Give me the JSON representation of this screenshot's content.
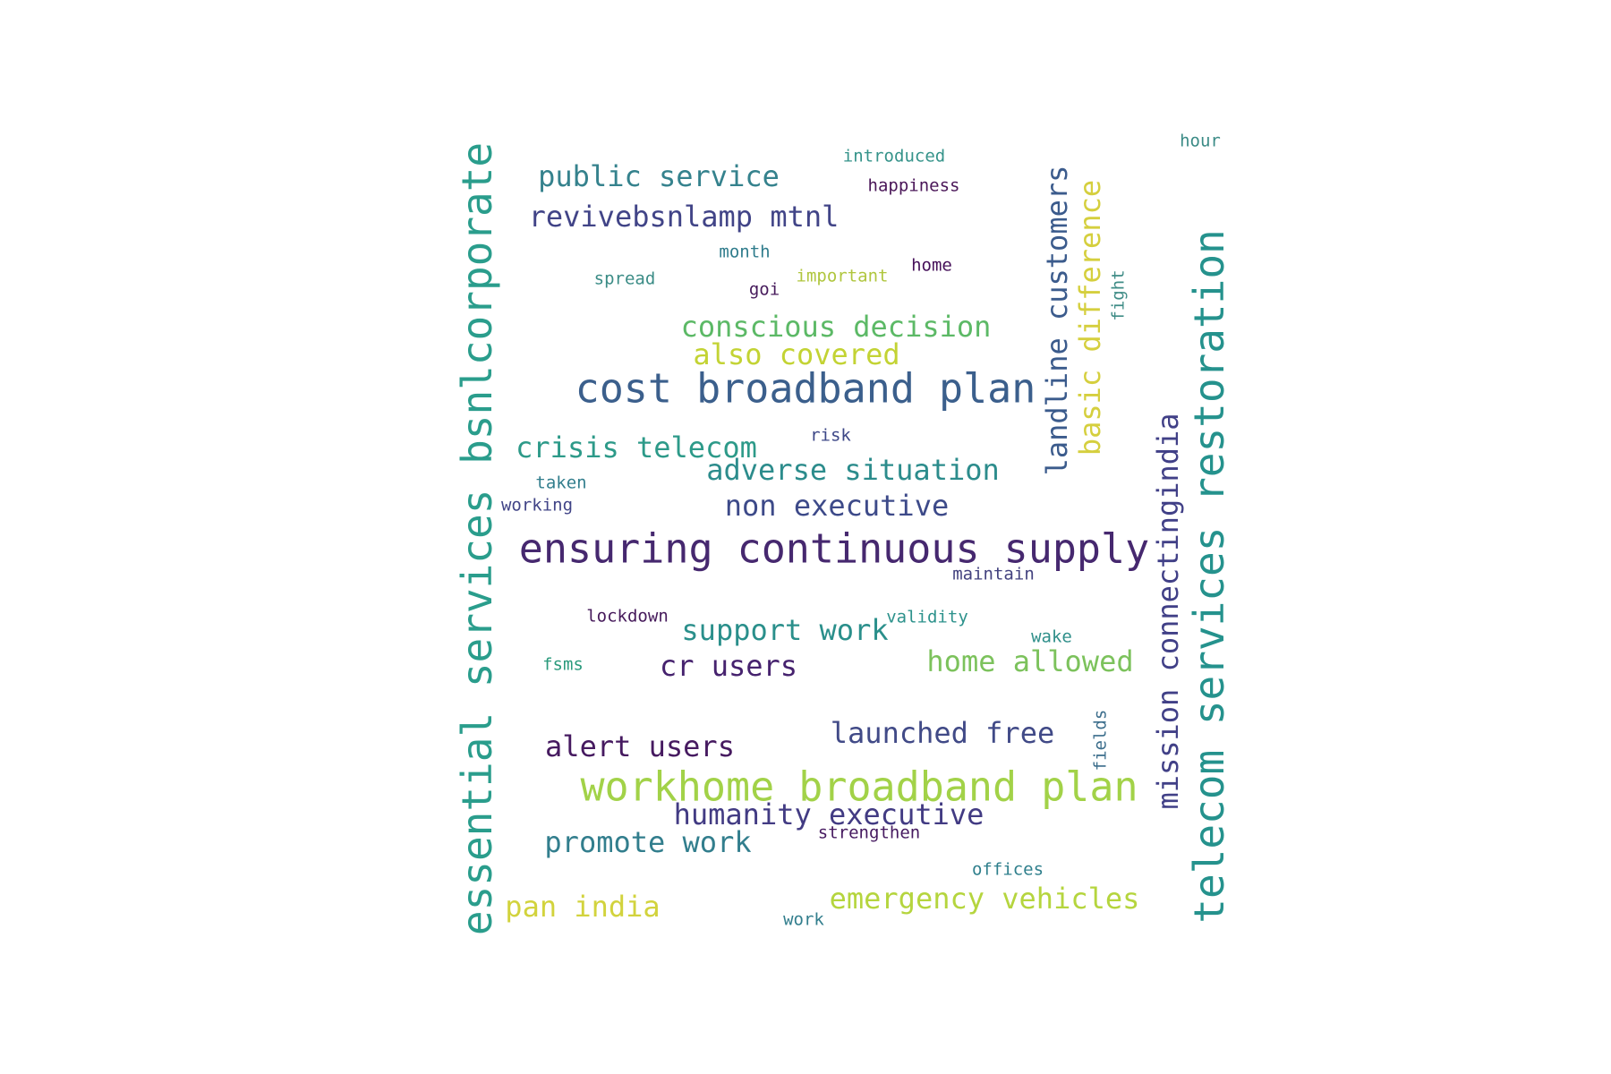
{
  "words": [
    {
      "text": "essential services bsnlcorporate",
      "color": "#2a9d8c"
    },
    {
      "text": "telecom services restoration",
      "color": "#25928d"
    },
    {
      "text": "cost broadband plan",
      "color": "#3b5f8c"
    },
    {
      "text": "ensuring continuous supply",
      "color": "#46286f"
    },
    {
      "text": "workhome broadband plan",
      "color": "#a2d248"
    },
    {
      "text": "public service",
      "color": "#35828d"
    },
    {
      "text": "revivebsnlamp mtnl",
      "color": "#414487"
    },
    {
      "text": "landline customers",
      "color": "#3b5b8c"
    },
    {
      "text": "basic difference",
      "color": "#d5cf3e"
    },
    {
      "text": "conscious decision",
      "color": "#5cb966"
    },
    {
      "text": "also covered",
      "color": "#c3d334"
    },
    {
      "text": "crisis telecom",
      "color": "#2d9a89"
    },
    {
      "text": "adverse situation",
      "color": "#2c8c8c"
    },
    {
      "text": "non executive",
      "color": "#3d4a89"
    },
    {
      "text": "mission connectingindia",
      "color": "#414087"
    },
    {
      "text": "support work",
      "color": "#2a8f8b"
    },
    {
      "text": "cr users",
      "color": "#46226e"
    },
    {
      "text": "home allowed",
      "color": "#7cc25c"
    },
    {
      "text": "launched free",
      "color": "#414a87"
    },
    {
      "text": "alert users",
      "color": "#461a60"
    },
    {
      "text": "humanity executive",
      "color": "#423b83"
    },
    {
      "text": "promote work",
      "color": "#327e8d"
    },
    {
      "text": "pan india",
      "color": "#d2d33d"
    },
    {
      "text": "emergency vehicles",
      "color": "#b5d53e"
    },
    {
      "text": "introduced",
      "color": "#35938a"
    },
    {
      "text": "happiness",
      "color": "#4a1658"
    },
    {
      "text": "hour",
      "color": "#3b8b86"
    },
    {
      "text": "month",
      "color": "#2f7c8c"
    },
    {
      "text": "spread",
      "color": "#3b8c86"
    },
    {
      "text": "important",
      "color": "#b0c63e"
    },
    {
      "text": "home",
      "color": "#46115a"
    },
    {
      "text": "goi",
      "color": "#461a5b"
    },
    {
      "text": "fight",
      "color": "#3f8c86"
    },
    {
      "text": "risk",
      "color": "#3d4787"
    },
    {
      "text": "taken",
      "color": "#327e8d"
    },
    {
      "text": "working",
      "color": "#414487"
    },
    {
      "text": "maintain",
      "color": "#43427f"
    },
    {
      "text": "lockdown",
      "color": "#461a5b"
    },
    {
      "text": "validity",
      "color": "#2d928c"
    },
    {
      "text": "wake",
      "color": "#2f8f8a"
    },
    {
      "text": "fsms",
      "color": "#2a9a7c"
    },
    {
      "text": "fields",
      "color": "#3c6e8c"
    },
    {
      "text": "strengthen",
      "color": "#461a60"
    },
    {
      "text": "offices",
      "color": "#2f7f8c"
    },
    {
      "text": "work",
      "color": "#327e8d"
    }
  ]
}
